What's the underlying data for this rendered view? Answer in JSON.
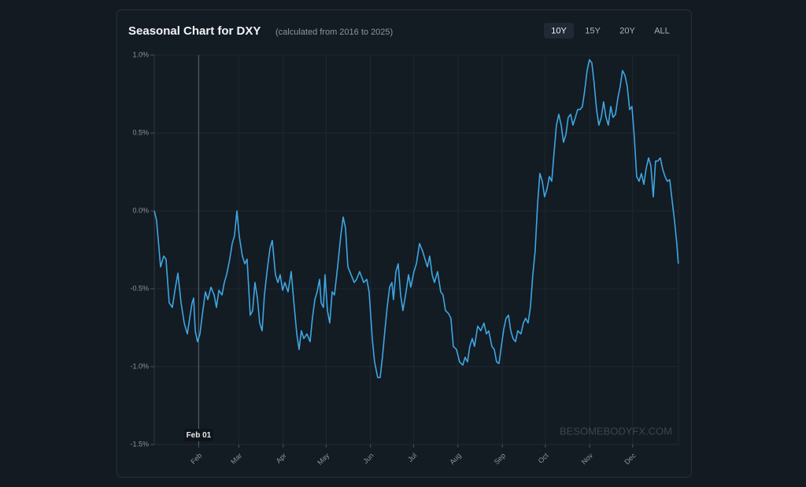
{
  "chart_data": {
    "type": "line",
    "title": "Seasonal Chart for DXY",
    "subtitle": "(calculated from 2016 to 2025)",
    "range_buttons": [
      "10Y",
      "15Y",
      "20Y",
      "ALL"
    ],
    "watermark": "BESOMEBODYFX.COM",
    "crosshair_label": "Feb 01",
    "color": "#3ea6e2",
    "grid": true,
    "xlim": [
      0,
      366
    ],
    "xticks": [
      {
        "value": 31,
        "label": "Feb"
      },
      {
        "value": 59,
        "label": "Mar"
      },
      {
        "value": 90,
        "label": "Apr"
      },
      {
        "value": 120,
        "label": "May"
      },
      {
        "value": 151,
        "label": "Jun"
      },
      {
        "value": 181,
        "label": "Jul"
      },
      {
        "value": 212,
        "label": "Aug"
      },
      {
        "value": 243,
        "label": "Sep"
      },
      {
        "value": 273,
        "label": "Oct"
      },
      {
        "value": 304,
        "label": "Nov"
      },
      {
        "value": 334,
        "label": "Dec"
      }
    ],
    "ylim": [
      -1.5,
      1.0
    ],
    "yticks": [
      {
        "value": 1.0,
        "label": "1.0%"
      },
      {
        "value": 0.5,
        "label": "0.5%"
      },
      {
        "value": 0.0,
        "label": "0.0%"
      },
      {
        "value": -0.5,
        "label": "-0.5%"
      },
      {
        "value": -1.0,
        "label": "-1.0%"
      },
      {
        "value": -1.5,
        "label": "-1.5%"
      }
    ],
    "x": [
      0,
      1.6,
      4.4,
      6.6,
      8.2,
      10.4,
      12.6,
      14.8,
      16.5,
      18.7,
      20.9,
      23.1,
      24.7,
      26.4,
      27.5,
      28.6,
      30.2,
      31.9,
      33.5,
      35.7,
      37.4,
      39.6,
      41.8,
      43.4,
      45.1,
      47.3,
      48.9,
      50.5,
      52.7,
      54.4,
      56.0,
      57.7,
      59.3,
      61.5,
      63.2,
      64.8,
      67.0,
      68.7,
      70.3,
      72.0,
      73.6,
      75.3,
      76.9,
      79.1,
      80.8,
      82.4,
      84.6,
      86.3,
      87.9,
      89.6,
      91.2,
      93.4,
      95.6,
      97.3,
      99.5,
      101.1,
      102.7,
      104.4,
      106.6,
      108.8,
      110.4,
      112.1,
      113.7,
      115.4,
      116.5,
      118.1,
      119.2,
      120.9,
      122.5,
      124.2,
      125.8,
      128.0,
      130.2,
      131.9,
      133.5,
      135.2,
      137.4,
      139.6,
      141.2,
      143.4,
      146.2,
      148.4,
      150.0,
      152.2,
      153.8,
      156.0,
      157.7,
      159.3,
      161.0,
      162.6,
      164.3,
      165.9,
      167.0,
      168.7,
      170.3,
      172.0,
      173.6,
      175.8,
      177.5,
      179.1,
      181.3,
      183.0,
      185.2,
      187.4,
      189.0,
      190.7,
      192.3,
      194.0,
      195.6,
      197.8,
      200.0,
      201.6,
      203.3,
      205.5,
      207.1,
      208.8,
      211.0,
      213.2,
      215.4,
      217.0,
      218.7,
      220.3,
      222.0,
      223.6,
      225.8,
      228.0,
      230.2,
      231.9,
      233.5,
      235.7,
      237.4,
      239.0,
      240.7,
      242.3,
      244.0,
      245.6,
      247.3,
      248.9,
      250.5,
      252.2,
      253.8,
      256.0,
      257.7,
      259.3,
      261.0,
      262.6,
      264.3,
      265.9,
      267.6,
      269.2,
      270.9,
      272.5,
      274.2,
      275.8,
      277.5,
      279.1,
      280.8,
      282.4,
      284.1,
      285.7,
      287.4,
      289.0,
      290.7,
      292.3,
      294.0,
      295.6,
      297.3,
      298.9,
      300.5,
      302.2,
      303.8,
      305.5,
      307.1,
      308.8,
      310.4,
      312.1,
      313.7,
      315.4,
      317.0,
      318.7,
      320.3,
      322.0,
      323.6,
      325.3,
      326.9,
      328.6,
      330.2,
      331.9,
      333.5,
      335.2,
      336.8,
      338.5,
      340.1,
      341.8,
      343.4,
      345.1,
      346.7,
      348.4,
      350.0,
      351.6,
      353.3,
      354.9,
      356.6,
      358.2,
      359.9,
      361.5,
      363.2,
      364.8,
      365.9
    ],
    "values": [
      0.0,
      -0.06,
      -0.36,
      -0.29,
      -0.31,
      -0.59,
      -0.62,
      -0.49,
      -0.4,
      -0.59,
      -0.72,
      -0.79,
      -0.69,
      -0.59,
      -0.56,
      -0.77,
      -0.84,
      -0.79,
      -0.67,
      -0.52,
      -0.57,
      -0.49,
      -0.54,
      -0.62,
      -0.51,
      -0.54,
      -0.46,
      -0.41,
      -0.31,
      -0.21,
      -0.16,
      0.0,
      -0.16,
      -0.29,
      -0.34,
      -0.31,
      -0.67,
      -0.64,
      -0.46,
      -0.56,
      -0.72,
      -0.77,
      -0.54,
      -0.36,
      -0.24,
      -0.19,
      -0.41,
      -0.46,
      -0.41,
      -0.51,
      -0.46,
      -0.52,
      -0.39,
      -0.57,
      -0.79,
      -0.89,
      -0.77,
      -0.82,
      -0.79,
      -0.84,
      -0.69,
      -0.57,
      -0.52,
      -0.44,
      -0.59,
      -0.62,
      -0.41,
      -0.64,
      -0.72,
      -0.52,
      -0.54,
      -0.36,
      -0.16,
      -0.04,
      -0.11,
      -0.36,
      -0.41,
      -0.46,
      -0.44,
      -0.39,
      -0.46,
      -0.44,
      -0.52,
      -0.82,
      -0.97,
      -1.07,
      -1.07,
      -0.94,
      -0.77,
      -0.62,
      -0.49,
      -0.46,
      -0.57,
      -0.39,
      -0.34,
      -0.54,
      -0.64,
      -0.52,
      -0.41,
      -0.49,
      -0.39,
      -0.34,
      -0.21,
      -0.26,
      -0.31,
      -0.36,
      -0.29,
      -0.41,
      -0.46,
      -0.39,
      -0.52,
      -0.54,
      -0.64,
      -0.66,
      -0.69,
      -0.87,
      -0.89,
      -0.97,
      -0.99,
      -0.94,
      -0.97,
      -0.87,
      -0.82,
      -0.87,
      -0.74,
      -0.77,
      -0.72,
      -0.79,
      -0.77,
      -0.87,
      -0.89,
      -0.97,
      -0.98,
      -0.87,
      -0.76,
      -0.69,
      -0.67,
      -0.77,
      -0.82,
      -0.84,
      -0.77,
      -0.79,
      -0.72,
      -0.69,
      -0.72,
      -0.62,
      -0.41,
      -0.26,
      0.04,
      0.24,
      0.19,
      0.09,
      0.14,
      0.22,
      0.19,
      0.37,
      0.55,
      0.62,
      0.55,
      0.44,
      0.49,
      0.6,
      0.62,
      0.55,
      0.6,
      0.65,
      0.65,
      0.67,
      0.77,
      0.9,
      0.97,
      0.95,
      0.82,
      0.65,
      0.55,
      0.6,
      0.7,
      0.6,
      0.55,
      0.67,
      0.6,
      0.62,
      0.72,
      0.8,
      0.9,
      0.87,
      0.8,
      0.65,
      0.67,
      0.47,
      0.22,
      0.19,
      0.24,
      0.17,
      0.27,
      0.34,
      0.29,
      0.09,
      0.32,
      0.32,
      0.34,
      0.27,
      0.22,
      0.19,
      0.2,
      0.07,
      -0.06,
      -0.21,
      -0.34
    ]
  }
}
